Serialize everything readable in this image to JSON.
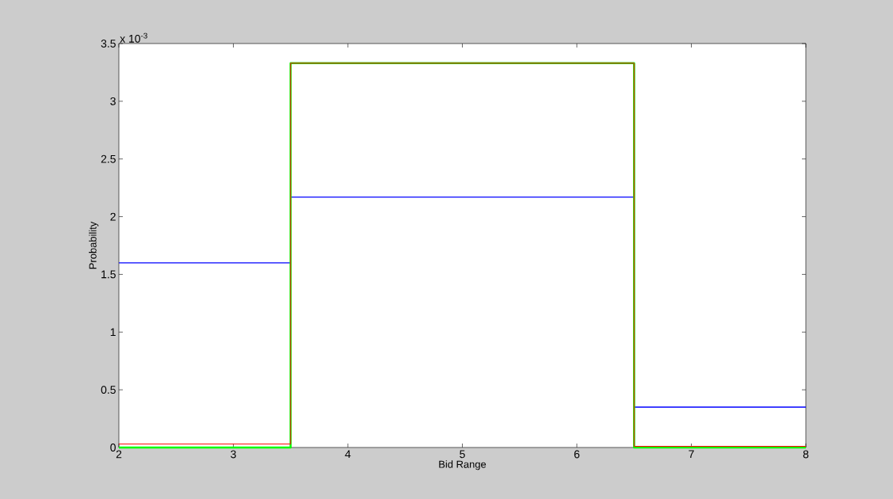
{
  "chart_data": {
    "type": "step",
    "xlabel": "Bid Range",
    "ylabel": "Probability",
    "annotations": [
      "x 10$^{-3}$"
    ],
    "x": [
      2,
      3.5,
      6.5,
      8
    ],
    "series": [
      {
        "color": "#0000ff",
        "values": [
          1.6,
          2.17,
          0.35,
          0.35
        ]
      },
      {
        "color": "#00ff00",
        "values": [
          0,
          3.33,
          0,
          0
        ]
      },
      {
        "color": "#ff0000",
        "values": [
          0.03,
          3.33,
          0.01,
          0.01
        ]
      }
    ],
    "xlim": [
      2,
      8
    ],
    "ylim": [
      0,
      3.5
    ],
    "xticks": [
      2,
      3,
      4,
      5,
      6,
      7,
      8
    ],
    "yticks": [
      0,
      0.5,
      1,
      1.5,
      2,
      2.5,
      3,
      3.5
    ]
  }
}
